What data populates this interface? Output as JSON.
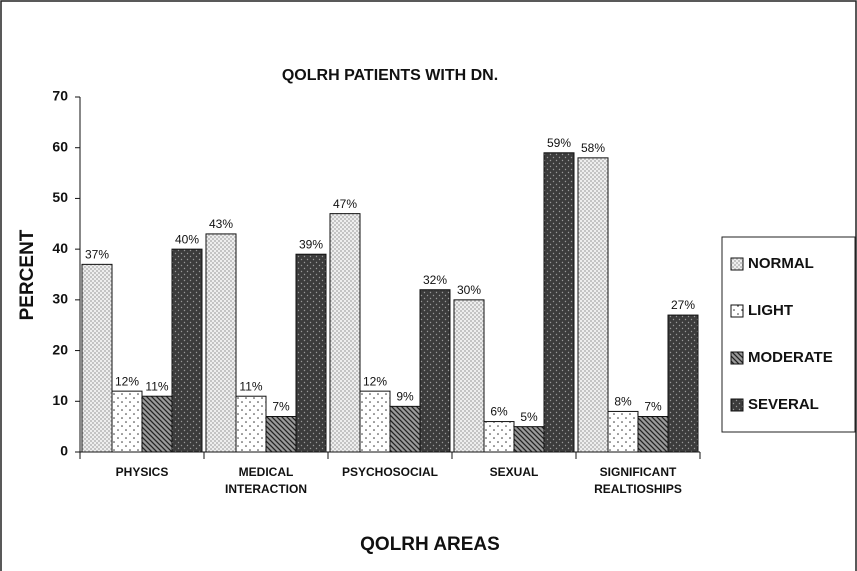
{
  "chart_data": {
    "type": "bar",
    "title": "QOLRH PATIENTS WITH DN.",
    "x_label": "QOLRH AREAS",
    "y_label": "PERCENT",
    "categories": [
      "PHYSICS",
      "MEDICAL INTERACTION",
      "PSYCHOSOCIAL",
      "SEXUAL",
      "SIGNIFICANT REALTIOSHIPS"
    ],
    "series": [
      {
        "name": "NORMAL",
        "color": "#c4c4c4",
        "values": [
          37,
          43,
          47,
          30,
          58
        ],
        "value_labels": [
          "37%",
          "43%",
          "47%",
          "30%",
          "58%"
        ]
      },
      {
        "name": "LIGHT",
        "color": "#ffffff",
        "values": [
          12,
          11,
          12,
          6,
          8
        ],
        "value_labels": [
          "12%",
          "11%",
          "12%",
          "6%",
          "8%"
        ]
      },
      {
        "name": "MODERATE",
        "color": "#9a9a9a",
        "values": [
          11,
          7,
          9,
          5,
          7
        ],
        "value_labels": [
          "11%",
          "7%",
          "9%",
          "5%",
          "7%"
        ]
      },
      {
        "name": "SEVERAL",
        "color": "#3c3c3c",
        "values": [
          40,
          39,
          32,
          59,
          27
        ],
        "value_labels": [
          "40%",
          "39%",
          "32%",
          "59%",
          "27%"
        ]
      }
    ],
    "ylim": [
      0,
      70
    ],
    "yticks": [
      0,
      10,
      20,
      30,
      40,
      50,
      60,
      70
    ],
    "grid": false,
    "legend": "right"
  }
}
